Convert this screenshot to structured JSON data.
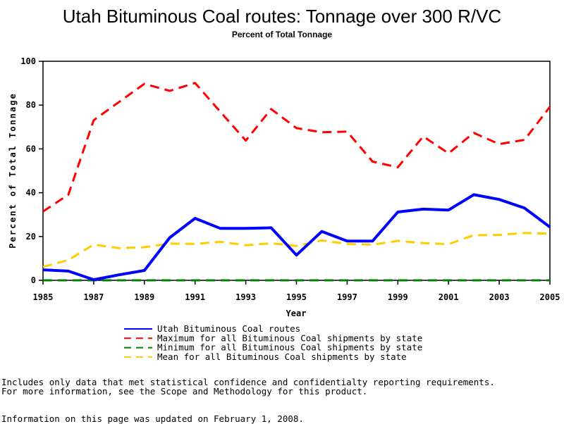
{
  "chart_data": {
    "type": "line",
    "title": "Utah Bituminous Coal routes: Tonnage over 300 R/VC",
    "subtitle": "Percent of Total Tonnage",
    "xlabel": "Year",
    "ylabel": "Percent of Total Tonnage",
    "xlim": [
      1985,
      2005
    ],
    "ylim": [
      0,
      100
    ],
    "x_ticks": [
      "1985",
      "1987",
      "1989",
      "1991",
      "1993",
      "1995",
      "1997",
      "1999",
      "2001",
      "2003",
      "2005"
    ],
    "y_ticks": [
      "0",
      "20",
      "40",
      "60",
      "80",
      "100"
    ],
    "x": [
      1985,
      1986,
      1987,
      1988,
      1989,
      1990,
      1991,
      1992,
      1993,
      1994,
      1995,
      1996,
      1997,
      1998,
      1999,
      2000,
      2001,
      2002,
      2003,
      2004,
      2005
    ],
    "series": [
      {
        "name": "Utah Bituminous Coal routes",
        "color": "#0000ff",
        "dash": "solid",
        "values": [
          4.8,
          4.2,
          0.3,
          2.5,
          4.5,
          19.5,
          28.3,
          23.7,
          23.7,
          24.0,
          11.5,
          22.3,
          17.9,
          17.9,
          31.2,
          32.5,
          32.1,
          39.1,
          36.9,
          33.0,
          24.3
        ]
      },
      {
        "name": "Maximum for all Bituminous Coal shipments by state",
        "color": "#ff0000",
        "dash": "dashed",
        "values": [
          31.4,
          39.1,
          73.1,
          81.4,
          89.7,
          86.5,
          90.1,
          76.9,
          63.8,
          78.2,
          69.5,
          67.6,
          67.9,
          54.2,
          51.6,
          65.7,
          58.0,
          67.3,
          62.2,
          64.1,
          79.2
        ]
      },
      {
        "name": "Minimum for all Bituminous Coal shipments by state",
        "color": "#008000",
        "dash": "dashed",
        "values": [
          0,
          0,
          0,
          0,
          0,
          0,
          0,
          0,
          0,
          0,
          0,
          0,
          0,
          0,
          0,
          0,
          0,
          0,
          0,
          0,
          0
        ]
      },
      {
        "name": "Mean for all Bituminous Coal shipments by state",
        "color": "#ffcc00",
        "dash": "dashed",
        "values": [
          6.1,
          9.3,
          16.3,
          14.7,
          15.1,
          16.8,
          16.6,
          17.6,
          16.0,
          16.9,
          15.7,
          18.2,
          16.6,
          16.3,
          18.0,
          17.0,
          16.5,
          20.6,
          20.7,
          21.6,
          21.3
        ]
      }
    ],
    "grid": false,
    "legend_position": "bottom"
  },
  "footnotes": {
    "line1": "Includes only data that met statistical confidence and confidentialty reporting requirements.",
    "line2": "For more information, see the Scope and Methodology for this product.",
    "updated": "Information on this page was updated on February 1, 2008."
  }
}
